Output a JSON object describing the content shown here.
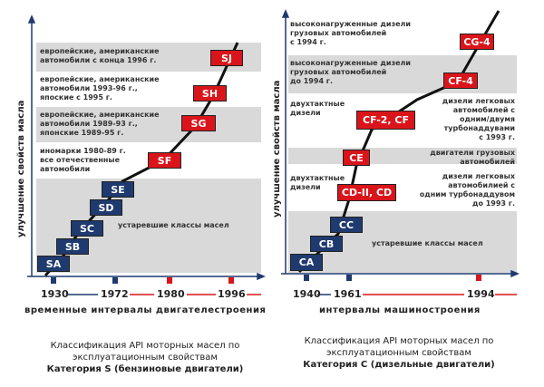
{
  "left": {
    "y_axis": "улучшение свойств масла",
    "x_axis": "временные интервалы двигателестроения",
    "years": [
      "1930",
      "1972",
      "1980",
      "1996"
    ],
    "bands": [
      "европейские, американские\nавтомобили с конца 1996 г.",
      "европейские, американские\nавтомобили 1993-96 г.,\nяпоские с 1995 г.",
      "европейские, американские\nавтомобили 1989-93 г.,\nяпонские 1989-95 г.",
      "иномарки 1980-89 г.\nвсе отечественные\nавтомобили",
      "устаревшие классы масел"
    ],
    "classes": [
      "SA",
      "SB",
      "SC",
      "SD",
      "SE",
      "SF",
      "SG",
      "SH",
      "SJ"
    ],
    "caption": [
      "Классификация API моторных масел по",
      "эксплуатационным свойствам",
      "Категория S (бензиновые двигатели)"
    ]
  },
  "right": {
    "y_axis": "улучшение свойств масла",
    "x_axis": "интервалы машиностроения",
    "years": [
      "1940",
      "1961",
      "1994"
    ],
    "bands": [
      "высоконагруженные дизели\nгрузовых автомобилей\nс 1994 г.",
      "высоконагруженные дизели\nгрузовых автомобилей\nдо 1994 г.",
      "двухтактные\nдизели",
      "дизели легковых\nавтомобилей с\nодним/двумя\nтурбонаддувами\nс 1993 г.",
      "двигатели грузовых\nавтомобилей",
      "двухтактные\nдизели",
      "дизели легковых\nавтомобилией с\nодним турбонаддувом\nдо 1993 г.",
      "устаревшие классы масел"
    ],
    "classes": [
      "CA",
      "CB",
      "CC",
      "CD-II, CD",
      "CE",
      "CF-2, CF",
      "CF-4",
      "CG-4"
    ],
    "caption": [
      "Классификация API моторных масел по",
      "эксплуатационным свойствам",
      "Категория С (дизельные двигатели)"
    ]
  },
  "colors": {
    "obsolete": "#1f3a6e",
    "current": "#d9151b",
    "band": "#d9d9d9"
  }
}
